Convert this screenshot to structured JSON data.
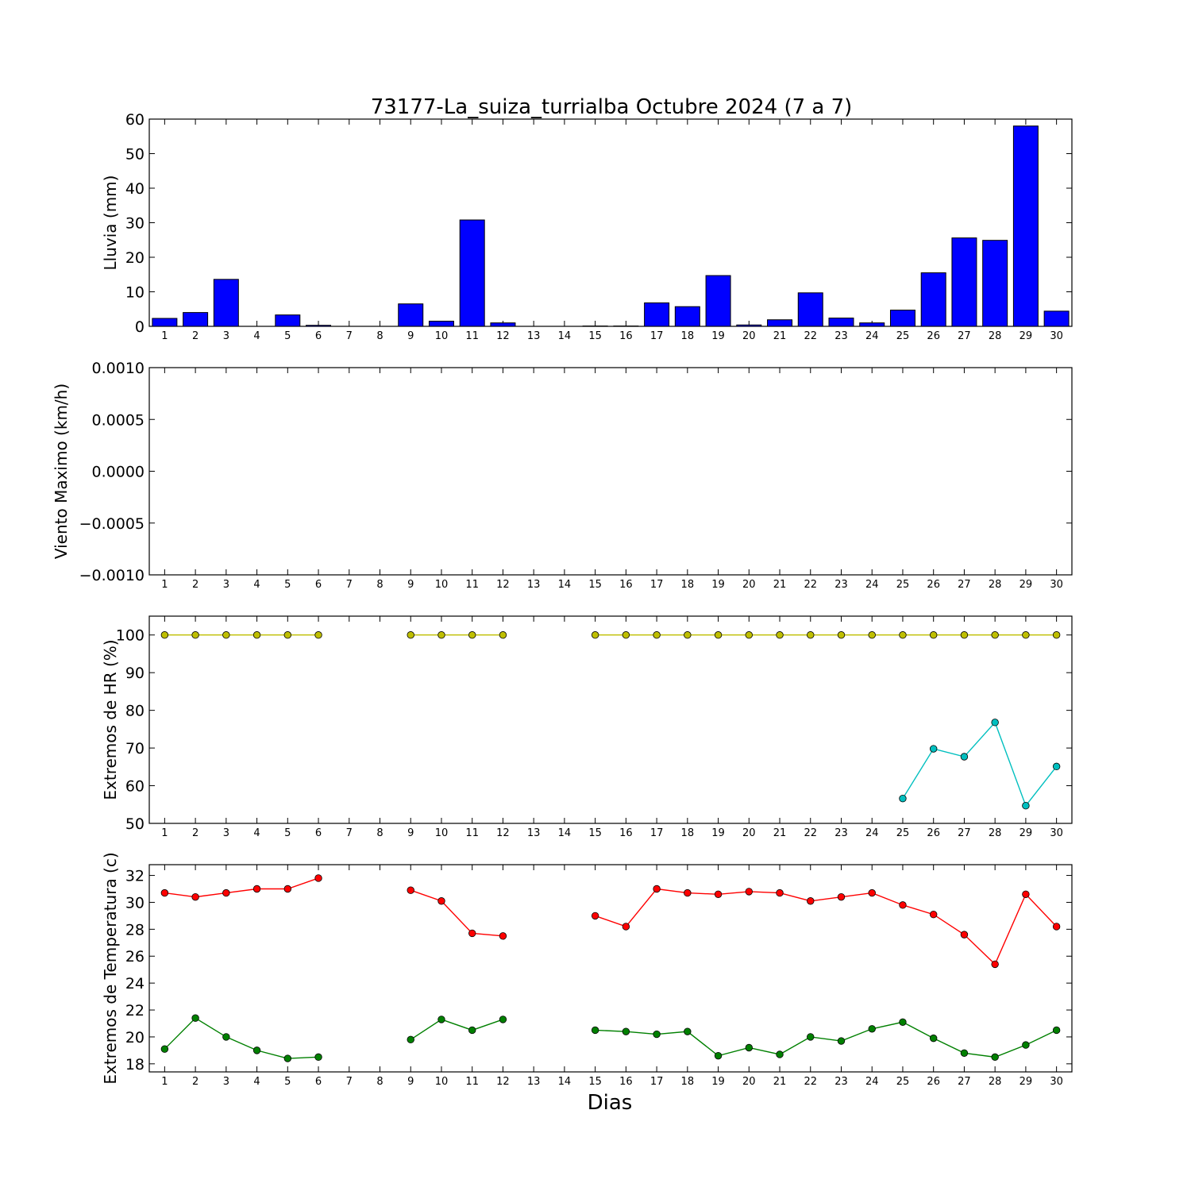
{
  "title": "73177-La_suiza_turrialba Octubre 2024  (7 a 7)",
  "xlabel": "Dias",
  "days": [
    "1",
    "2",
    "3",
    "4",
    "5",
    "6",
    "7",
    "8",
    "9",
    "10",
    "11",
    "12",
    "13",
    "14",
    "15",
    "16",
    "17",
    "18",
    "19",
    "20",
    "21",
    "22",
    "23",
    "24",
    "25",
    "26",
    "27",
    "28",
    "29",
    "30"
  ],
  "colors": {
    "rain": "#0000ff",
    "hr_max": "#bfbf00",
    "hr_min": "#00bfbf",
    "t_max": "#ff0000",
    "t_min": "#008000"
  },
  "chart_data": [
    {
      "type": "bar",
      "ylabel": "Lluvia (mm)",
      "ylim": [
        0,
        60
      ],
      "yticks": [
        0,
        10,
        20,
        30,
        40,
        50,
        60
      ],
      "ytick_labels": [
        "0",
        "10",
        "20",
        "30",
        "40",
        "50",
        "60"
      ],
      "categories": [
        "1",
        "2",
        "3",
        "4",
        "5",
        "6",
        "7",
        "8",
        "9",
        "10",
        "11",
        "12",
        "13",
        "14",
        "15",
        "16",
        "17",
        "18",
        "19",
        "20",
        "21",
        "22",
        "23",
        "24",
        "25",
        "26",
        "27",
        "28",
        "29",
        "30"
      ],
      "values": [
        2.3,
        4.0,
        13.6,
        0,
        3.3,
        0.3,
        0,
        0,
        6.5,
        1.5,
        30.8,
        1.0,
        0,
        0,
        0.1,
        0.1,
        6.8,
        5.7,
        14.7,
        0.4,
        1.9,
        9.7,
        2.4,
        1.0,
        4.7,
        15.5,
        25.6,
        24.9,
        58.0,
        4.4
      ]
    },
    {
      "type": "line",
      "ylabel": "Viento Maximo (km/h)",
      "ylim": [
        -0.001,
        0.001
      ],
      "yticks": [
        -0.001,
        -0.0005,
        0,
        0.0005,
        0.001
      ],
      "ytick_labels": [
        "−0.0010",
        "−0.0005",
        "0.0000",
        "0.0005",
        "0.0010"
      ],
      "series": []
    },
    {
      "type": "line",
      "ylabel": "Extremos de HR (%)",
      "ylim": [
        50,
        105
      ],
      "yticks": [
        50,
        60,
        70,
        80,
        90,
        100
      ],
      "ytick_labels": [
        "50",
        "60",
        "70",
        "80",
        "90",
        "100"
      ],
      "series": [
        {
          "key": "hr_max",
          "values": [
            100,
            100,
            100,
            100,
            100,
            100,
            null,
            null,
            100,
            100,
            100,
            100,
            null,
            null,
            100,
            100,
            100,
            100,
            100,
            100,
            100,
            100,
            100,
            100,
            100,
            100,
            100,
            100,
            100,
            100
          ]
        },
        {
          "key": "hr_min",
          "values": [
            null,
            null,
            null,
            null,
            null,
            null,
            null,
            null,
            null,
            null,
            null,
            null,
            null,
            null,
            null,
            null,
            null,
            null,
            null,
            null,
            null,
            null,
            null,
            null,
            56.6,
            69.8,
            67.7,
            76.8,
            54.7,
            65.1
          ]
        }
      ]
    },
    {
      "type": "line",
      "ylabel": "Extremos de Temperatura (c)",
      "ylim": [
        17.4,
        32.8
      ],
      "yticks": [
        18,
        20,
        22,
        24,
        26,
        28,
        30,
        32
      ],
      "ytick_labels": [
        "18",
        "20",
        "22",
        "24",
        "26",
        "28",
        "30",
        "32"
      ],
      "series": [
        {
          "key": "t_max",
          "values": [
            30.7,
            30.4,
            30.7,
            31.0,
            31.0,
            31.8,
            null,
            null,
            30.9,
            30.1,
            27.7,
            27.5,
            null,
            null,
            29.0,
            28.2,
            31.0,
            30.7,
            30.6,
            30.8,
            30.7,
            30.1,
            30.4,
            30.7,
            29.8,
            29.1,
            27.6,
            25.4,
            30.6,
            28.2
          ]
        },
        {
          "key": "t_min",
          "values": [
            19.1,
            21.4,
            20.0,
            19.0,
            18.4,
            18.5,
            null,
            null,
            19.8,
            21.3,
            20.5,
            21.3,
            null,
            null,
            20.5,
            20.4,
            20.2,
            20.4,
            18.6,
            19.2,
            18.7,
            20.0,
            19.7,
            20.6,
            21.1,
            19.9,
            18.8,
            18.5,
            19.4,
            20.5
          ]
        }
      ]
    }
  ]
}
